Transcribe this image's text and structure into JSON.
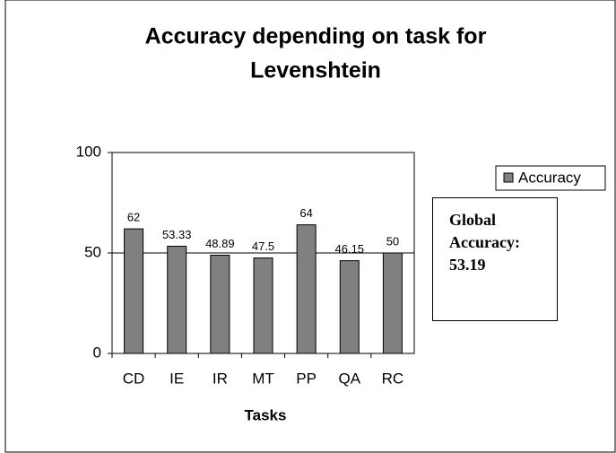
{
  "chart_data": {
    "type": "bar",
    "title": [
      "Accuracy depending on task for",
      "Levenshtein"
    ],
    "x_label": "Tasks",
    "categories": [
      "CD",
      "IE",
      "IR",
      "MT",
      "PP",
      "QA",
      "RC"
    ],
    "series": [
      {
        "name": "Accuracy",
        "color": "#808080",
        "values": [
          62,
          53.33,
          48.89,
          47.5,
          64,
          46.15,
          50
        ]
      }
    ],
    "ylim": [
      0,
      100
    ],
    "yticks": [
      0,
      50,
      100
    ],
    "grid": true,
    "annotation": "Global Accuracy: 53.19"
  }
}
